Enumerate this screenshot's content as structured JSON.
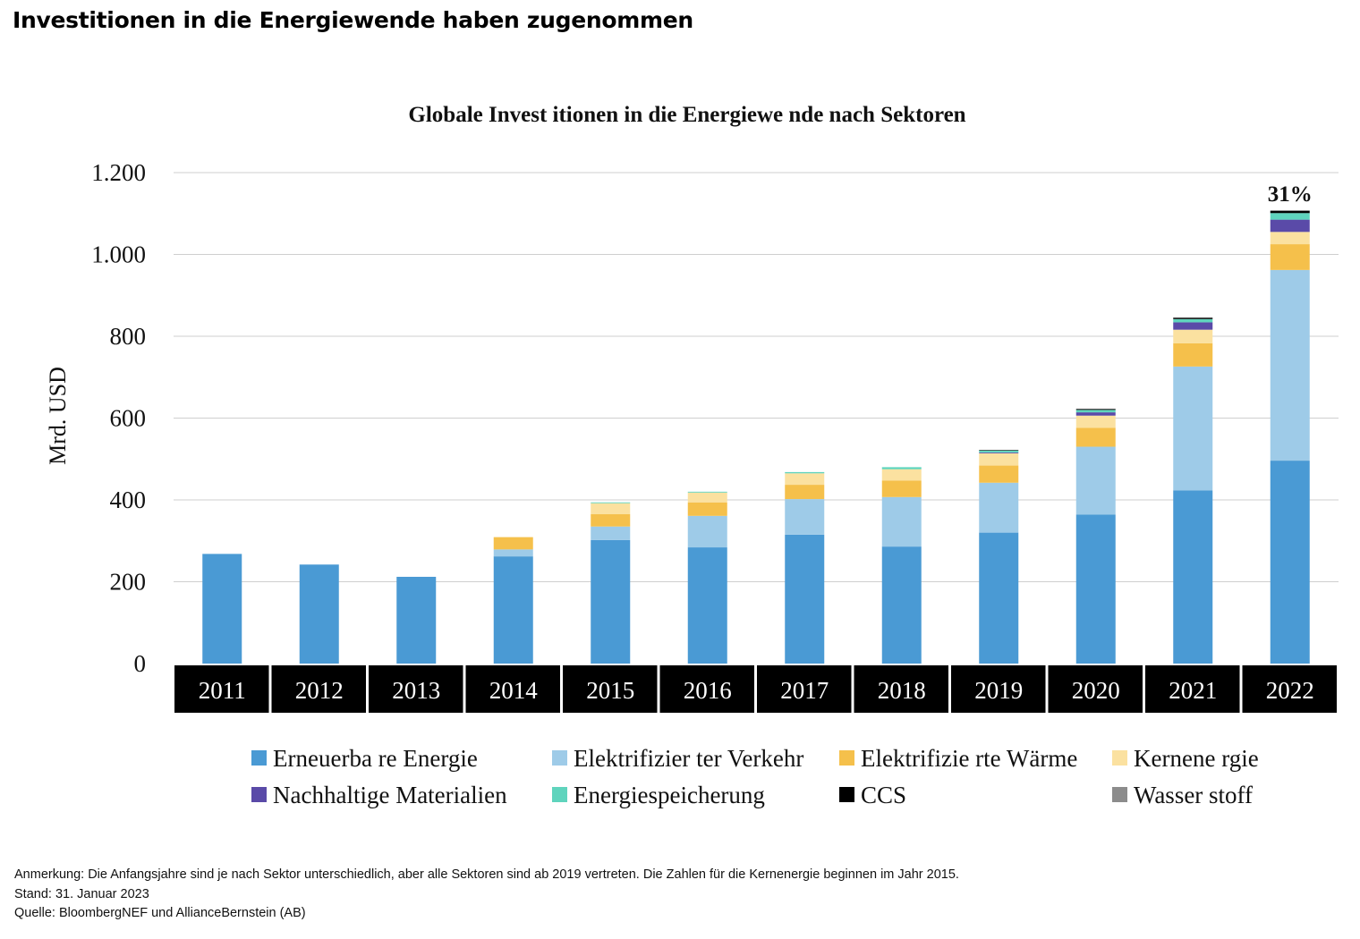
{
  "headline": "Investitionen in die Energiewende haben zugenommen",
  "chart_data": {
    "type": "bar",
    "stacked": true,
    "title": "Globale Invest itionen in die Energiewe nde nach Sektoren",
    "ylabel": "Mrd. USD",
    "xlabel": "",
    "ylim": [
      0,
      1200
    ],
    "yticks": [
      0,
      200,
      400,
      600,
      800,
      1000,
      1200
    ],
    "ytick_labels": [
      "0",
      "200",
      "400",
      "600",
      "800",
      "1.000",
      "1.200"
    ],
    "grid": true,
    "legend_position": "bottom",
    "categories": [
      "2011",
      "2012",
      "2013",
      "2014",
      "2015",
      "2016",
      "2017",
      "2018",
      "2019",
      "2020",
      "2021",
      "2022"
    ],
    "series": [
      {
        "name": "Erneuerba re Energie",
        "color": "#4a9ad4",
        "values": [
          268,
          242,
          212,
          262,
          302,
          284,
          315,
          286,
          320,
          364,
          423,
          496
        ]
      },
      {
        "name": "Elektrifizier ter Verkehr",
        "color": "#9ecbe8",
        "values": [
          0,
          0,
          0,
          17,
          33,
          77,
          87,
          121,
          122,
          166,
          303,
          466
        ]
      },
      {
        "name": "Elektrifizie rte Wärme",
        "color": "#f5c04b",
        "values": [
          0,
          0,
          0,
          30,
          30,
          33,
          35,
          40,
          42,
          46,
          57,
          63
        ]
      },
      {
        "name": "Kernene rgie",
        "color": "#fbe1a0",
        "values": [
          0,
          0,
          0,
          0,
          27,
          24,
          28,
          28,
          30,
          30,
          33,
          30
        ]
      },
      {
        "name": "Nachhaltige Materialien",
        "color": "#5a4aa8",
        "values": [
          0,
          0,
          0,
          0,
          0,
          0,
          0,
          0,
          2,
          8,
          18,
          30
        ]
      },
      {
        "name": "Energiespeicherung",
        "color": "#5fd4bd",
        "values": [
          0,
          0,
          0,
          0,
          2,
          2,
          3,
          5,
          5,
          6,
          8,
          16
        ]
      },
      {
        "name": "CCS",
        "color": "#000000",
        "values": [
          0,
          0,
          0,
          0,
          0,
          0,
          0,
          0,
          1,
          2,
          3,
          5
        ]
      },
      {
        "name": "Wasser stoff",
        "color": "#8c8c8c",
        "values": [
          0,
          0,
          0,
          0,
          0,
          0,
          0,
          0,
          0,
          1,
          1,
          2
        ]
      }
    ],
    "annotations": [
      {
        "category": "2022",
        "text": "31%"
      }
    ]
  },
  "notes": {
    "anmerkung": "Anmerkung: Die Anfangsjahre sind je nach Sektor unterschiedlich, aber alle Sektoren sind ab 2019 vertreten. Die Zahlen für die Kernenergie beginnen im Jahr 2015.",
    "stand": "Stand: 31. Januar 2023",
    "quelle": "Quelle: BloombergNEF und AllianceBernstein (AB)"
  }
}
